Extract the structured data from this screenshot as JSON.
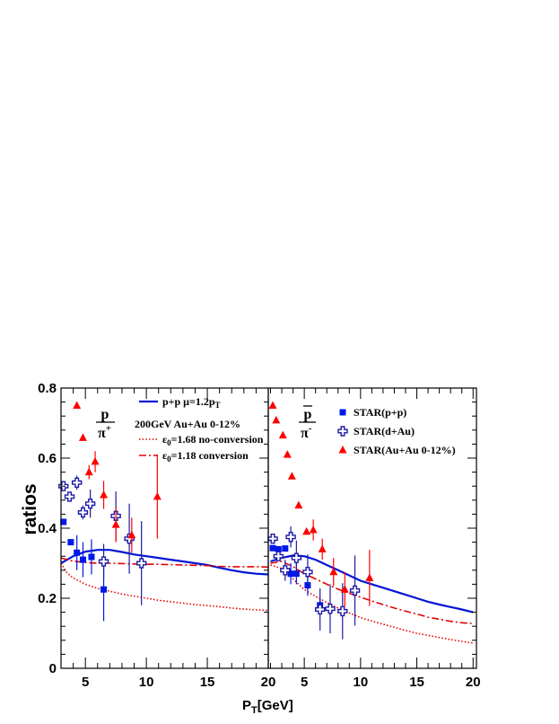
{
  "chart_data": {
    "type": "scatter",
    "ylabel": "ratios",
    "xlabel_main": "P",
    "xlabel_sub": "T",
    "xlabel_tail": "[GeV]",
    "ylim": [
      0,
      0.8
    ],
    "y_ticks": [
      "0",
      "0.2",
      "0.4",
      "0.6",
      "0.8"
    ],
    "x_ticks": [
      "5",
      "10",
      "15",
      "20"
    ],
    "grid": false,
    "colors": {
      "blue": "#0015d6",
      "red": "#e60000",
      "pp_marker": "#0018e8",
      "auau_marker": "#ff0000",
      "dau_marker": "#1a1aa6"
    },
    "panels": [
      {
        "xlim": [
          3,
          20
        ],
        "ratio_num": "p",
        "ratio_den": "π",
        "ratio_den_sup": "+",
        "legend": [
          {
            "key": "pp",
            "text": "p+p  μ=1.2p",
            "sub": "T"
          },
          {
            "key": "note",
            "text": "200GeV  Au+Au  0-12%"
          },
          {
            "key": "noconv",
            "text_sym": "ε",
            "sub": "0",
            "text": "=1.68  no-conversion"
          },
          {
            "key": "conv",
            "text_sym": "ε",
            "sub": "0",
            "text": "=1.18  conversion"
          }
        ],
        "series": [
          {
            "key": "pp",
            "style": "solid",
            "color": "blue",
            "x": [
              3,
              4,
              5,
              6,
              7,
              8,
              9,
              10,
              11,
              12,
              13,
              14,
              15,
              16,
              17,
              18,
              19,
              20
            ],
            "y": [
              0.3,
              0.32,
              0.333,
              0.338,
              0.338,
              0.332,
              0.325,
              0.32,
              0.315,
              0.31,
              0.305,
              0.3,
              0.295,
              0.287,
              0.28,
              0.274,
              0.27,
              0.268
            ]
          },
          {
            "key": "noconv",
            "style": "dotted",
            "color": "red",
            "x": [
              3,
              3.5,
              4,
              5,
              6,
              7,
              8,
              9,
              10,
              11,
              12,
              13,
              14,
              15,
              16,
              17,
              18,
              19,
              20
            ],
            "y": [
              0.3,
              0.272,
              0.258,
              0.24,
              0.228,
              0.22,
              0.212,
              0.206,
              0.2,
              0.194,
              0.19,
              0.186,
              0.182,
              0.179,
              0.176,
              0.172,
              0.169,
              0.167,
              0.165
            ]
          },
          {
            "key": "conv",
            "style": "dashdot",
            "color": "red",
            "x": [
              3,
              4,
              5,
              6,
              7,
              8,
              9,
              10,
              11,
              12,
              13,
              14,
              15,
              16,
              17,
              18,
              19,
              20
            ],
            "y": [
              0.315,
              0.306,
              0.302,
              0.3,
              0.3,
              0.299,
              0.298,
              0.297,
              0.297,
              0.296,
              0.295,
              0.294,
              0.293,
              0.291,
              0.29,
              0.29,
              0.29,
              0.289
            ]
          }
        ],
        "points": [
          {
            "key": "star_pp",
            "marker": "square",
            "color": "pp_marker",
            "x": [
              3.2,
              3.8,
              4.3,
              4.8,
              5.5,
              6.5
            ],
            "y": [
              0.418,
              0.36,
              0.33,
              0.31,
              0.318,
              0.225
            ],
            "err": [
              0.0,
              0.0,
              0.05,
              0.05,
              0.05,
              0.09
            ]
          },
          {
            "key": "star_dau",
            "marker": "cross",
            "color": "dau_marker",
            "x": [
              3.2,
              3.7,
              4.3,
              4.8,
              5.4,
              6.5,
              7.5,
              8.6,
              9.6
            ],
            "y": [
              0.52,
              0.49,
              0.53,
              0.445,
              0.47,
              0.305,
              0.435,
              0.37,
              0.3
            ],
            "err": [
              0.0,
              0.0,
              0.02,
              0.02,
              0.04,
              0.05,
              0.07,
              0.1,
              0.12
            ]
          },
          {
            "key": "star_auau",
            "marker": "triangle",
            "color": "auau_marker",
            "x": [
              4.3,
              4.8,
              5.3,
              5.8,
              6.5,
              7.5,
              8.8,
              10.9
            ],
            "y": [
              0.75,
              0.658,
              0.56,
              0.59,
              0.495,
              0.41,
              0.38,
              0.49
            ],
            "err": [
              0.0,
              0.0,
              0.02,
              0.03,
              0.04,
              0.05,
              0.05,
              0.12
            ]
          }
        ]
      },
      {
        "xlim": [
          1.8,
          20.3
        ],
        "ratio_num": "p",
        "ratio_den": "π",
        "ratio_den_sup": "-",
        "legend": [
          {
            "key": "star_pp",
            "text": "STAR(p+p)"
          },
          {
            "key": "star_dau",
            "text": "STAR(d+Au)"
          },
          {
            "key": "star_auau",
            "text": "STAR(Au+Au 0-12%)"
          }
        ],
        "series": [
          {
            "key": "pp",
            "style": "solid",
            "color": "blue",
            "x": [
              2,
              2.5,
              3,
              4,
              5,
              6,
              7,
              8,
              9,
              10,
              11,
              12,
              13,
              14,
              15,
              16,
              17,
              18,
              19,
              20
            ],
            "y": [
              0.305,
              0.31,
              0.315,
              0.322,
              0.32,
              0.31,
              0.295,
              0.28,
              0.265,
              0.25,
              0.24,
              0.23,
              0.22,
              0.21,
              0.2,
              0.19,
              0.182,
              0.175,
              0.168,
              0.16
            ]
          },
          {
            "key": "noconv",
            "style": "dotted",
            "color": "red",
            "x": [
              2,
              3,
              4,
              5,
              6,
              7,
              8,
              9,
              10,
              11,
              12,
              13,
              14,
              15,
              16,
              17,
              18,
              19,
              20
            ],
            "y": [
              0.295,
              0.285,
              0.255,
              0.225,
              0.205,
              0.188,
              0.172,
              0.158,
              0.145,
              0.135,
              0.126,
              0.117,
              0.108,
              0.1,
              0.094,
              0.088,
              0.082,
              0.077,
              0.072
            ]
          },
          {
            "key": "conv",
            "style": "dashdot",
            "color": "red",
            "x": [
              2,
              3,
              4,
              5,
              6,
              7,
              8,
              9,
              10,
              11,
              12,
              13,
              14,
              15,
              16,
              17,
              18,
              19,
              20
            ],
            "y": [
              0.3,
              0.305,
              0.29,
              0.27,
              0.255,
              0.24,
              0.226,
              0.214,
              0.203,
              0.192,
              0.182,
              0.172,
              0.163,
              0.155,
              0.146,
              0.14,
              0.134,
              0.13,
              0.128
            ]
          }
        ],
        "points": [
          {
            "key": "star_pp",
            "marker": "square",
            "color": "pp_marker",
            "x": [
              2.2,
              2.7,
              3.3,
              3.8,
              4.3,
              5.3,
              6.4
            ],
            "y": [
              0.343,
              0.34,
              0.342,
              0.27,
              0.27,
              0.237,
              0.18
            ],
            "err": [
              0.0,
              0.0,
              0.0,
              0.03,
              0.03,
              0.03,
              0.02
            ]
          },
          {
            "key": "star_dau",
            "marker": "cross",
            "color": "dau_marker",
            "x": [
              2.2,
              2.7,
              3.3,
              3.8,
              4.3,
              5.3,
              6.4,
              7.3,
              8.4,
              9.5
            ],
            "y": [
              0.37,
              0.32,
              0.28,
              0.375,
              0.315,
              0.275,
              0.168,
              0.17,
              0.163,
              0.222
            ],
            "err": [
              0.0,
              0.0,
              0.03,
              0.03,
              0.05,
              0.05,
              0.06,
              0.07,
              0.08,
              0.1
            ]
          },
          {
            "key": "star_auau",
            "marker": "triangle",
            "color": "auau_marker",
            "x": [
              2.2,
              2.5,
              3.1,
              3.5,
              3.9,
              4.5,
              5.2,
              5.8,
              6.6,
              7.6,
              8.6,
              10.8
            ],
            "y": [
              0.75,
              0.708,
              0.665,
              0.61,
              0.548,
              0.465,
              0.39,
              0.395,
              0.34,
              0.275,
              0.225,
              0.258
            ],
            "err": [
              0.0,
              0.0,
              0.0,
              0.0,
              0.0,
              0.0,
              0.0,
              0.03,
              0.03,
              0.04,
              0.05,
              0.08
            ]
          }
        ]
      }
    ]
  }
}
